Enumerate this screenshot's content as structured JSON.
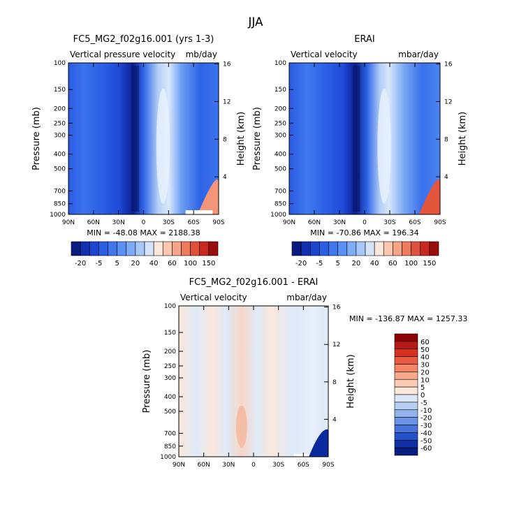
{
  "title": "JJA",
  "chart_data": [
    {
      "type": "heatmap",
      "title": "FC5_MG2_f02g16.001 (yrs 1-3)",
      "subtitle_left": "Vertical pressure velocity",
      "subtitle_right": "mb/day",
      "xlabel": "",
      "ylabel": "Pressure (mb)",
      "y2label": "Height (km)",
      "x_ticks": [
        "90N",
        "60N",
        "30N",
        "0",
        "30S",
        "60S",
        "90S"
      ],
      "y_ticks": [
        "100",
        "150",
        "200",
        "250",
        "300",
        "400",
        "500",
        "700",
        "850",
        "1000"
      ],
      "y2_ticks": [
        "16",
        "12",
        "8",
        "4"
      ],
      "stats": "MIN = -48.08   MAX = 2188.38",
      "colorbar_labels": [
        "-20",
        "-5",
        "5",
        "20",
        "40",
        "60",
        "100",
        "150"
      ]
    },
    {
      "type": "heatmap",
      "title": "ERAI",
      "subtitle_left": "Vertical velocity",
      "subtitle_right": "mbar/day",
      "xlabel": "",
      "ylabel": "Pressure (mb)",
      "y2label": "Height (km)",
      "x_ticks": [
        "90N",
        "60N",
        "30N",
        "0",
        "30S",
        "60S",
        "90S"
      ],
      "y_ticks": [
        "100",
        "150",
        "200",
        "250",
        "300",
        "400",
        "500",
        "700",
        "850",
        "1000"
      ],
      "y2_ticks": [
        "16",
        "12",
        "8",
        "4"
      ],
      "stats": "MIN = -70.86   MAX = 196.34",
      "colorbar_labels": [
        "-20",
        "-5",
        "5",
        "20",
        "40",
        "60",
        "100",
        "150"
      ]
    },
    {
      "type": "heatmap",
      "title": "FC5_MG2_f02g16.001 - ERAI",
      "subtitle_left": "Vertical velocity",
      "subtitle_right": "mbar/day",
      "xlabel": "",
      "ylabel": "Pressure (mb)",
      "y2label": "Height (km)",
      "x_ticks": [
        "90N",
        "60N",
        "30N",
        "0",
        "30S",
        "60S",
        "90S"
      ],
      "y_ticks": [
        "100",
        "150",
        "200",
        "250",
        "300",
        "400",
        "500",
        "700",
        "850",
        "1000"
      ],
      "y2_ticks": [
        "16",
        "12",
        "8",
        "4"
      ],
      "stats": "MIN = -136.87   MAX = 1257.33",
      "colorbar_labels": [
        "60",
        "50",
        "40",
        "30",
        "20",
        "10",
        "5",
        "0",
        "-5",
        "-10",
        "-20",
        "-30",
        "-40",
        "-50",
        "-60"
      ]
    }
  ],
  "colors": {
    "bar1": [
      "#0a1a80",
      "#1030b0",
      "#1a45d0",
      "#2a5fe4",
      "#3f78ee",
      "#5a92f4",
      "#7dabf6",
      "#a6c7f8",
      "#d4e4fa",
      "#fde6dc",
      "#fbc7b0",
      "#f6a487",
      "#ee7b5c",
      "#e0503a",
      "#c8281e",
      "#9a0d0d"
    ],
    "bar3": [
      "#8b0000",
      "#b51a14",
      "#d6301f",
      "#ea5a3e",
      "#f48567",
      "#f8a88c",
      "#fbcbb4",
      "#fde8dc",
      "#dde9f8",
      "#b9d0f5",
      "#92b3ee",
      "#6a93e6",
      "#4673dc",
      "#2452c8",
      "#1030a8",
      "#081d80"
    ]
  }
}
